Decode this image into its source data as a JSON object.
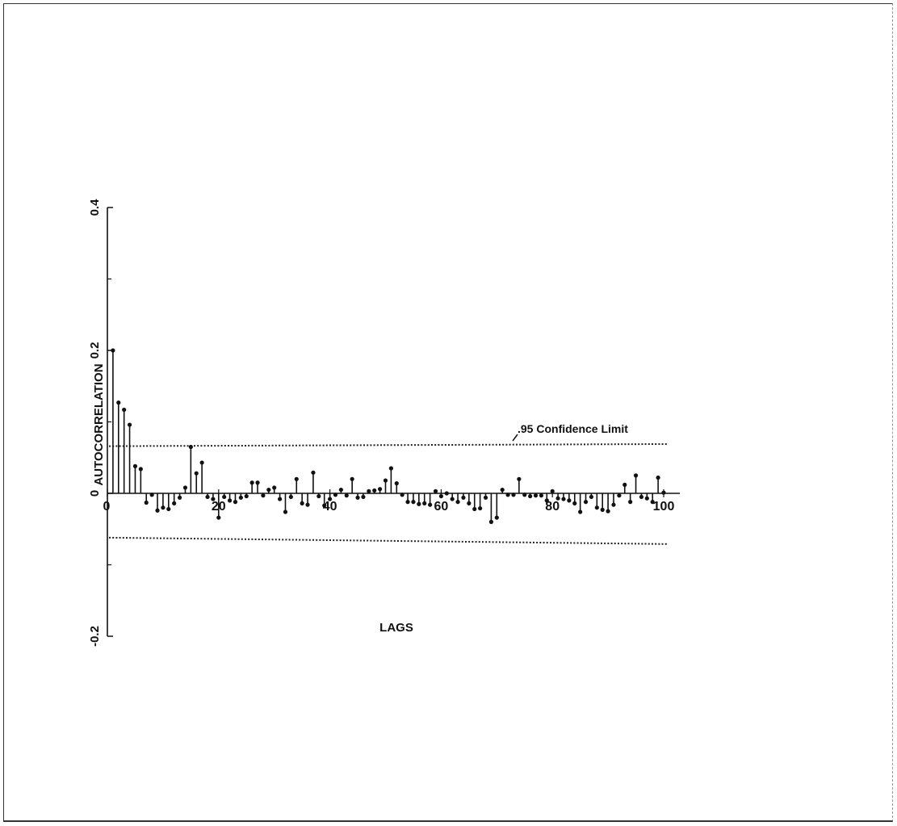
{
  "chart_data": {
    "type": "stem",
    "xlabel": "LAGS",
    "ylabel": "AUTOCORRELATION",
    "xlim": [
      0,
      100
    ],
    "ylim": [
      -0.2,
      0.4
    ],
    "x_ticks": [
      {
        "value": 0,
        "label": "0"
      },
      {
        "value": 20,
        "label": "20"
      },
      {
        "value": 40,
        "label": "40"
      },
      {
        "value": 60,
        "label": "60"
      },
      {
        "value": 80,
        "label": "80"
      },
      {
        "value": 100,
        "label": "100"
      }
    ],
    "y_ticks": [
      {
        "value": 0.4,
        "label": "0.4"
      },
      {
        "value": 0.2,
        "label": "0.2"
      },
      {
        "value": 0,
        "label": "0"
      },
      {
        "value": -0.2,
        "label": "-0.2"
      }
    ],
    "y_minor_ticks": [
      0.3,
      0.1,
      -0.1
    ],
    "confidence_limit": {
      "label": ".95 Confidence Limit",
      "upper": [
        0.066,
        0.069
      ],
      "lower": [
        -0.062,
        -0.071
      ]
    },
    "lags": [
      1,
      2,
      3,
      4,
      5,
      6,
      7,
      8,
      9,
      10,
      11,
      12,
      13,
      14,
      15,
      16,
      17,
      18,
      19,
      20,
      21,
      22,
      23,
      24,
      25,
      26,
      27,
      28,
      29,
      30,
      31,
      32,
      33,
      34,
      35,
      36,
      37,
      38,
      39,
      40,
      41,
      42,
      43,
      44,
      45,
      46,
      47,
      48,
      49,
      50,
      51,
      52,
      53,
      54,
      55,
      56,
      57,
      58,
      59,
      60,
      61,
      62,
      63,
      64,
      65,
      66,
      67,
      68,
      69,
      70,
      71,
      72,
      73,
      74,
      75,
      76,
      77,
      78,
      79,
      80,
      81,
      82,
      83,
      84,
      85,
      86,
      87,
      88,
      89,
      90,
      91,
      92,
      93,
      94,
      95,
      96,
      97,
      98,
      99,
      100
    ],
    "values": [
      0.2,
      0.127,
      0.117,
      0.096,
      0.038,
      0.034,
      -0.013,
      -0.002,
      -0.024,
      -0.02,
      -0.022,
      -0.014,
      -0.006,
      0.008,
      0.065,
      0.028,
      0.043,
      -0.005,
      -0.008,
      -0.034,
      -0.005,
      -0.01,
      -0.012,
      -0.006,
      -0.004,
      0.015,
      0.015,
      -0.003,
      0.005,
      0.008,
      -0.008,
      -0.026,
      -0.005,
      0.02,
      -0.014,
      -0.016,
      0.029,
      -0.004,
      -0.017,
      -0.008,
      -0.002,
      0.005,
      -0.003,
      0.02,
      -0.006,
      -0.005,
      0.003,
      0.004,
      0.006,
      0.018,
      0.035,
      0.014,
      -0.002,
      -0.012,
      -0.012,
      -0.015,
      -0.014,
      -0.016,
      0.003,
      -0.004,
      0,
      -0.008,
      -0.012,
      -0.006,
      -0.014,
      -0.022,
      -0.021,
      -0.006,
      -0.04,
      -0.034,
      0.005,
      -0.002,
      -0.002,
      0.02,
      -0.002,
      -0.004,
      -0.003,
      -0.003,
      -0.01,
      0.003,
      -0.007,
      -0.008,
      -0.01,
      -0.014,
      -0.026,
      -0.012,
      -0.005,
      -0.02,
      -0.023,
      -0.025,
      -0.016,
      -0.003,
      0.012,
      -0.012,
      0.025,
      -0.005,
      -0.007,
      -0.012,
      0.022,
      0.001
    ]
  }
}
